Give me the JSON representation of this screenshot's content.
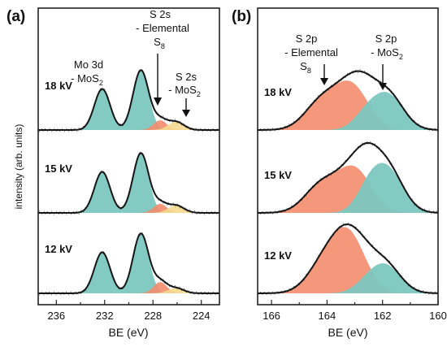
{
  "colors": {
    "mos2": "#7cc7bf",
    "elemental": "#f48c6d",
    "s2s_mos2": "#f5d98e",
    "fit_line": "#111111"
  },
  "ylabel": "intensity (arb. units)",
  "chart_data": [
    {
      "type": "area",
      "panel_label": "(a)",
      "xlabel": "BE (eV)",
      "xlim": [
        237.5,
        222.5
      ],
      "x_reversed": true,
      "x_ticks": [
        236,
        232,
        228,
        224
      ],
      "annotations": [
        {
          "id": "mo3d",
          "text": "Mo 3d",
          "line2_main": "- MoS",
          "line2_sub": "2"
        },
        {
          "id": "s2s_el",
          "text": "S 2s",
          "line2_main": "- Elemental",
          "line3_main": "S",
          "line3_sub": "8"
        },
        {
          "id": "s2s_mos2",
          "text": "S 2s",
          "line2_main": "- MoS",
          "line2_sub": "2"
        }
      ],
      "series": [
        {
          "name": "18 kV",
          "components": [
            {
              "kind": "mos2",
              "peaks": [
                [
                  232.2,
                  0.55,
                  0.65
                ],
                [
                  229.0,
                  0.8,
                  0.65
                ]
              ]
            },
            {
              "kind": "elemental",
              "peaks": [
                [
                  227.4,
                  0.13,
                  0.55
                ]
              ]
            },
            {
              "kind": "s2s_mos2",
              "peaks": [
                [
                  226.1,
                  0.11,
                  0.65
                ]
              ]
            }
          ]
        },
        {
          "name": "15 kV",
          "components": [
            {
              "kind": "mos2",
              "peaks": [
                [
                  232.2,
                  0.55,
                  0.65
                ],
                [
                  229.0,
                  0.8,
                  0.65
                ]
              ]
            },
            {
              "kind": "elemental",
              "peaks": [
                [
                  227.4,
                  0.12,
                  0.55
                ]
              ]
            },
            {
              "kind": "s2s_mos2",
              "peaks": [
                [
                  226.1,
                  0.1,
                  0.65
                ]
              ]
            }
          ]
        },
        {
          "name": "12 kV",
          "components": [
            {
              "kind": "mos2",
              "peaks": [
                [
                  232.2,
                  0.55,
                  0.65
                ],
                [
                  229.0,
                  0.8,
                  0.65
                ]
              ]
            },
            {
              "kind": "elemental",
              "peaks": [
                [
                  227.4,
                  0.15,
                  0.55
                ]
              ]
            },
            {
              "kind": "s2s_mos2",
              "peaks": [
                [
                  226.1,
                  0.07,
                  0.65
                ]
              ]
            }
          ]
        }
      ]
    },
    {
      "type": "area",
      "panel_label": "(b)",
      "xlabel": "BE (eV)",
      "xlim": [
        166.5,
        160
      ],
      "x_reversed": true,
      "x_ticks": [
        166,
        164,
        162,
        160
      ],
      "annotations": [
        {
          "id": "s2p_el",
          "text": "S 2p",
          "line2_main": "- Elemental",
          "line3_main": "S",
          "line3_sub": "8"
        },
        {
          "id": "s2p_mos2",
          "text": "S 2p",
          "line2_main": "- MoS",
          "line2_sub": "2"
        }
      ],
      "series": [
        {
          "name": "18 kV",
          "components": [
            {
              "kind": "elemental",
              "peaks": [
                [
                  164.2,
                  0.4,
                  0.6
                ],
                [
                  163.1,
                  0.62,
                  0.6
                ]
              ]
            },
            {
              "kind": "mos2",
              "peaks": [
                [
                  162.6,
                  0.2,
                  0.45
                ],
                [
                  161.8,
                  0.5,
                  0.55
                ]
              ]
            }
          ]
        },
        {
          "name": "15 kV",
          "components": [
            {
              "kind": "elemental",
              "peaks": [
                [
                  164.2,
                  0.4,
                  0.6
                ],
                [
                  163.0,
                  0.62,
                  0.6
                ]
              ]
            },
            {
              "kind": "mos2",
              "peaks": [
                [
                  162.5,
                  0.3,
                  0.45
                ],
                [
                  161.8,
                  0.6,
                  0.55
                ]
              ]
            }
          ]
        },
        {
          "name": "12 kV",
          "components": [
            {
              "kind": "elemental",
              "peaks": [
                [
                  164.1,
                  0.4,
                  0.6
                ],
                [
                  163.2,
                  0.8,
                  0.6
                ]
              ]
            },
            {
              "kind": "mos2",
              "peaks": [
                [
                  162.6,
                  0.1,
                  0.45
                ],
                [
                  161.9,
                  0.4,
                  0.55
                ]
              ]
            }
          ]
        }
      ]
    }
  ]
}
